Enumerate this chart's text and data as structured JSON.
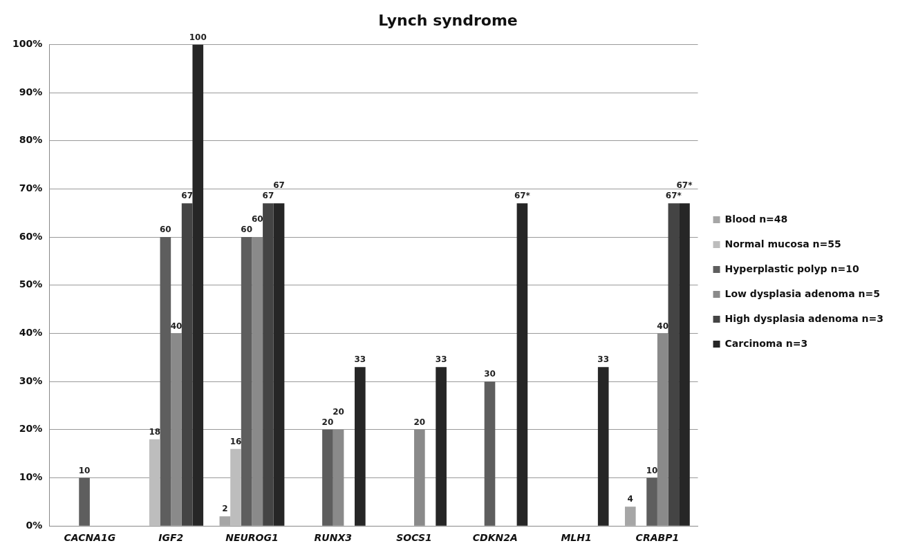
{
  "chart_data": {
    "type": "bar",
    "title": "Lynch syndrome",
    "categories": [
      "CACNA1G",
      "IGF2",
      "NEUROG1",
      "RUNX3",
      "SOCS1",
      "CDKN2A",
      "MLH1",
      "CRABP1"
    ],
    "series": [
      {
        "name": "Blood n=48",
        "color": "#a6a6a6",
        "values": [
          0,
          0,
          2,
          0,
          0,
          0,
          0,
          4
        ],
        "value_labels": [
          null,
          null,
          "2",
          null,
          null,
          null,
          null,
          "4"
        ]
      },
      {
        "name": "Normal mucosa n=55",
        "color": "#bdbdbd",
        "values": [
          0,
          18,
          16,
          0,
          0,
          0,
          0,
          0
        ],
        "value_labels": [
          null,
          "18",
          "16",
          null,
          null,
          null,
          null,
          null
        ]
      },
      {
        "name": "Hyperplastic polyp n=10",
        "color": "#5e5e5e",
        "values": [
          10,
          60,
          60,
          20,
          0,
          30,
          0,
          10
        ],
        "value_labels": [
          "10",
          "60",
          "60",
          "20",
          null,
          "30",
          null,
          "10"
        ]
      },
      {
        "name": "Low dysplasia adenoma n=5",
        "color": "#8a8a8a",
        "values": [
          0,
          40,
          60,
          20,
          20,
          0,
          0,
          40
        ],
        "value_labels": [
          null,
          "40",
          "60",
          "20",
          "20",
          null,
          null,
          "40"
        ]
      },
      {
        "name": "High dysplasia adenoma n=3",
        "color": "#444444",
        "values": [
          0,
          67,
          67,
          0,
          0,
          0,
          0,
          67
        ],
        "value_labels": [
          null,
          "67",
          "67",
          null,
          null,
          null,
          null,
          "67*"
        ]
      },
      {
        "name": "Carcinoma n=3",
        "color": "#262626",
        "values": [
          0,
          100,
          67,
          33,
          33,
          67,
          33,
          67
        ],
        "value_labels": [
          null,
          "100",
          "67",
          "33",
          "33",
          "67*",
          "33",
          "67*"
        ]
      }
    ],
    "ylim": [
      0,
      100
    ],
    "yticks": [
      {
        "value": 0,
        "label": "0%"
      },
      {
        "value": 10,
        "label": "10%"
      },
      {
        "value": 20,
        "label": "20%"
      },
      {
        "value": 30,
        "label": "30%"
      },
      {
        "value": 40,
        "label": "40%"
      },
      {
        "value": 50,
        "label": "50%"
      },
      {
        "value": 60,
        "label": "60%"
      },
      {
        "value": 70,
        "label": "70%"
      },
      {
        "value": 80,
        "label": "80%"
      },
      {
        "value": 90,
        "label": "90%"
      },
      {
        "value": 100,
        "label": "100%"
      }
    ],
    "grid": "y",
    "legend": "right"
  }
}
